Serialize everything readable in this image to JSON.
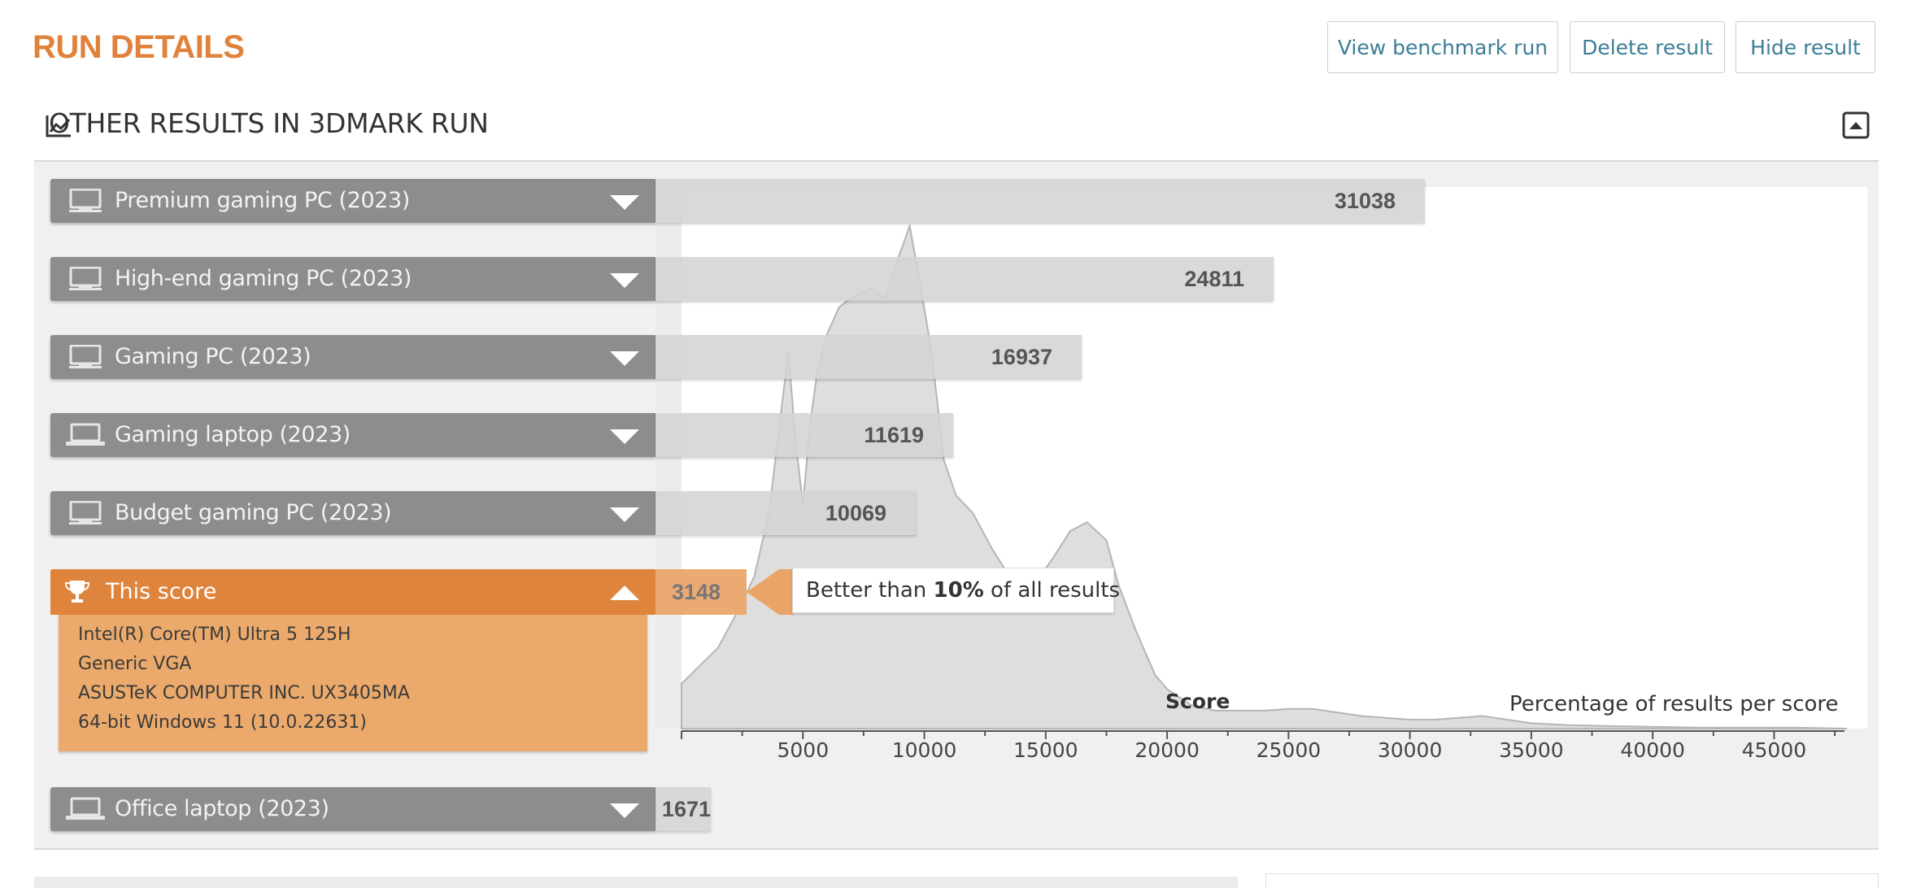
{
  "page": {
    "title": "RUN DETAILS",
    "buttons": {
      "view_benchmark_run": "View benchmark run",
      "delete_result": "Delete result",
      "hide_result": "Hide result"
    }
  },
  "section": {
    "title": "OTHER RESULTS IN 3DMARK RUN",
    "icon": "line-chart-icon",
    "collapse_icon": "collapse-up-icon"
  },
  "colors": {
    "accent": "#e0823b",
    "this_score": "#de843c",
    "category": "#8d8d8d",
    "link": "#3c7d96"
  },
  "categories": [
    {
      "label": "Premium gaming PC (2023)",
      "score": "31038",
      "icon": "desktop-pc-icon"
    },
    {
      "label": "High-end gaming PC (2023)",
      "score": "24811",
      "icon": "desktop-pc-icon"
    },
    {
      "label": "Gaming PC (2023)",
      "score": "16937",
      "icon": "desktop-pc-icon"
    },
    {
      "label": "Gaming laptop (2023)",
      "score": "11619",
      "icon": "laptop-icon"
    },
    {
      "label": "Budget gaming PC (2023)",
      "score": "10069",
      "icon": "desktop-pc-icon"
    }
  ],
  "this_score": {
    "label": "This score",
    "score": "3148",
    "icon": "trophy-icon",
    "callout_prefix": "Better than ",
    "callout_bold": "10%",
    "callout_suffix": " of all results",
    "details": [
      "Intel(R) Core(TM) Ultra 5 125H",
      "Generic VGA",
      "ASUSTeK COMPUTER INC. UX3405MA",
      "64-bit Windows 11 (10.0.22631)"
    ]
  },
  "office": {
    "label": "Office laptop (2023)",
    "score": "1671",
    "icon": "laptop-icon"
  },
  "chart_data": {
    "type": "area",
    "xlabel": "Score",
    "ylabel": "Percentage of results per score",
    "xlim": [
      0,
      48000
    ],
    "xticks": [
      5000,
      10000,
      15000,
      20000,
      25000,
      30000,
      35000,
      40000,
      45000
    ],
    "x": [
      0,
      1500,
      2500,
      3000,
      3600,
      4000,
      4400,
      4700,
      5000,
      5300,
      5600,
      6000,
      6500,
      7000,
      7800,
      8400,
      9000,
      9400,
      9800,
      10300,
      10800,
      11300,
      12000,
      12800,
      13500,
      14500,
      15300,
      16000,
      16700,
      17500,
      18000,
      18700,
      19500,
      20000,
      21000,
      22000,
      23000,
      24000,
      25000,
      26000,
      27000,
      28000,
      29000,
      30000,
      31000,
      32000,
      33000,
      34000,
      35000,
      36500,
      38000,
      40000,
      42000,
      44000,
      46000,
      48000
    ],
    "y": [
      2.5,
      4.5,
      7.0,
      8.5,
      12.0,
      16.5,
      21.0,
      16.0,
      12.5,
      17.0,
      20.0,
      22.0,
      23.5,
      24.0,
      24.5,
      24.0,
      26.5,
      28.0,
      25.0,
      21.0,
      15.0,
      13.0,
      12.0,
      10.0,
      8.5,
      8.0,
      9.5,
      11.0,
      11.5,
      10.5,
      8.0,
      5.5,
      3.0,
      2.2,
      1.3,
      1.0,
      1.0,
      1.0,
      1.1,
      1.1,
      0.9,
      0.7,
      0.6,
      0.5,
      0.5,
      0.6,
      0.7,
      0.5,
      0.3,
      0.2,
      0.15,
      0.1,
      0.05,
      0.05,
      0.05,
      0.0
    ]
  }
}
